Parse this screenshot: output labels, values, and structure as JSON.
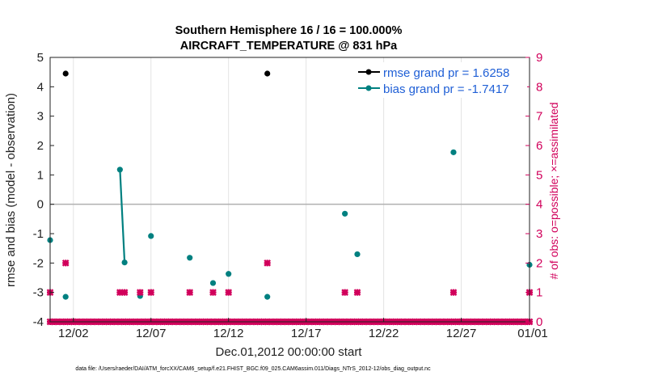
{
  "chart_data": {
    "type": "line",
    "title_line1": "Southern Hemisphere 16 / 16 = 100.000%",
    "title_line2": "AIRCRAFT_TEMPERATURE @ 831 hPa",
    "xlabel": "Dec.01,2012 00:00:00 start",
    "ylabel": "rmse and bias (model - observation)",
    "ylabel_right": "# of obs: o=possible; ×=assimilated",
    "footnote": "data file: /Users/raeder/DAI/ATM_forcXX/CAM6_setup/f.e21.FHIST_BGC.f09_025.CAM6assim.011/Diags_NTrS_2012-12/obs_diag_output.nc",
    "xlim": [
      0.5,
      31.4
    ],
    "ylim": [
      -4,
      5
    ],
    "ylim_right": [
      0,
      9
    ],
    "x_ticks": [
      2,
      7,
      12,
      17,
      22,
      27,
      32
    ],
    "x_tick_labels": [
      "12/02",
      "12/07",
      "12/12",
      "12/17",
      "12/22",
      "12/27",
      "01/01"
    ],
    "y_ticks": [
      5,
      4,
      3,
      2,
      1,
      0,
      -1,
      -2,
      -3,
      -4
    ],
    "y_tick_labels": [
      "5",
      "4",
      "3",
      "2",
      "1",
      "0",
      "-1",
      "-2",
      "-3",
      "-4"
    ],
    "y_ticks_right": [
      9,
      8,
      7,
      6,
      5,
      4,
      3,
      2,
      1,
      0
    ],
    "y_tick_labels_right": [
      "9",
      "8",
      "7",
      "6",
      "5",
      "4",
      "3",
      "2",
      "1",
      "0"
    ],
    "zero_line": 0,
    "series": [
      {
        "name": "rmse grand pr = 1.6258",
        "color": "#000000",
        "axis": "left",
        "marker": "circle",
        "points": [
          [
            1.5,
            4.45
          ],
          [
            14.5,
            4.45
          ]
        ]
      },
      {
        "name": "bias grand pr = -1.7417",
        "color": "#008080",
        "axis": "left",
        "marker": "circle",
        "segments": [
          [
            [
              5.0,
              1.18
            ],
            [
              5.3,
              -1.98
            ]
          ]
        ],
        "points": [
          [
            0.5,
            -1.22
          ],
          [
            1.5,
            -3.15
          ],
          [
            5.0,
            1.18
          ],
          [
            5.3,
            -1.98
          ],
          [
            6.3,
            -3.12
          ],
          [
            7.0,
            -1.08
          ],
          [
            9.5,
            -1.82
          ],
          [
            11.0,
            -2.68
          ],
          [
            12.0,
            -2.37
          ],
          [
            14.5,
            -3.15
          ],
          [
            19.5,
            -0.32
          ],
          [
            20.3,
            -1.7
          ],
          [
            26.5,
            1.77
          ],
          [
            31.5,
            -2.06
          ]
        ]
      },
      {
        "name": "obs possible",
        "color": "#d1005b",
        "axis": "right",
        "marker": "plus",
        "points": [
          [
            0.5,
            1
          ],
          [
            1.5,
            2
          ],
          [
            5.0,
            1
          ],
          [
            5.3,
            1
          ],
          [
            6.3,
            1
          ],
          [
            7.0,
            1
          ],
          [
            9.5,
            1
          ],
          [
            11.0,
            1
          ],
          [
            12.0,
            1
          ],
          [
            14.5,
            2
          ],
          [
            19.5,
            1
          ],
          [
            20.3,
            1
          ],
          [
            26.5,
            1
          ],
          [
            31.5,
            1
          ]
        ]
      },
      {
        "name": "obs assimilated",
        "color": "#d1005b",
        "axis": "right",
        "marker": "x",
        "points": [
          [
            0.5,
            1
          ],
          [
            1.5,
            2
          ],
          [
            5.0,
            1
          ],
          [
            5.3,
            1
          ],
          [
            6.3,
            1
          ],
          [
            7.0,
            1
          ],
          [
            9.5,
            1
          ],
          [
            11.0,
            1
          ],
          [
            12.0,
            1
          ],
          [
            14.5,
            2
          ],
          [
            19.5,
            1
          ],
          [
            20.3,
            1
          ],
          [
            26.5,
            1
          ],
          [
            31.5,
            1
          ]
        ]
      }
    ],
    "zero_count_x_start": 0.5,
    "zero_count_x_end": 31.5,
    "zero_count_step": 0.25,
    "legend_position": "top-right"
  }
}
